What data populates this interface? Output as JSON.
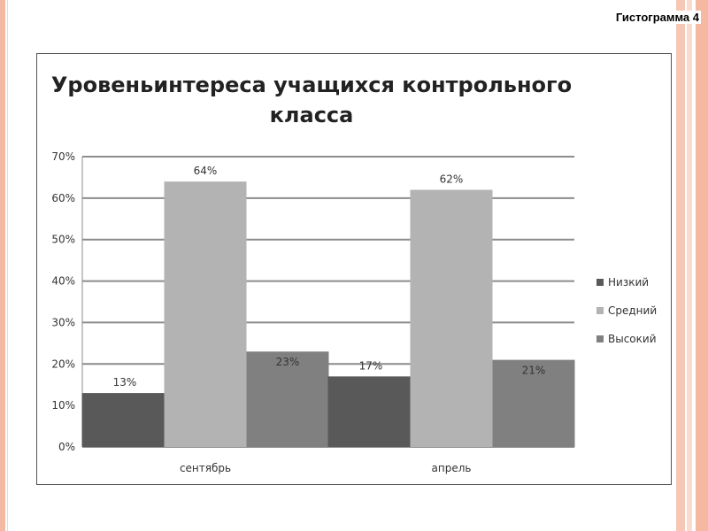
{
  "slide": {
    "title": "Гистограмма 4"
  },
  "chart_data": {
    "type": "bar",
    "title": "Уровеньинтереса учащихся контрольного класса",
    "title_lines": [
      "Уровеньинтереса учащихся контрольного",
      "класса"
    ],
    "categories": [
      "сентябрь",
      "апрель"
    ],
    "series": [
      {
        "name": "Низкий",
        "values": [
          13,
          17
        ],
        "labels": [
          "13%",
          "17%"
        ],
        "color": "#595959"
      },
      {
        "name": "Средний",
        "values": [
          64,
          62
        ],
        "labels": [
          "64%",
          "62%"
        ],
        "color": "#b3b3b3"
      },
      {
        "name": "Высокий",
        "values": [
          23,
          21
        ],
        "labels": [
          "23%",
          "21%"
        ],
        "color": "#808080"
      }
    ],
    "ylim": [
      0,
      70
    ],
    "yticks": [
      "0%",
      "10%",
      "20%",
      "30%",
      "40%",
      "50%",
      "60%",
      "70%"
    ],
    "grid": true,
    "legend": "right"
  }
}
